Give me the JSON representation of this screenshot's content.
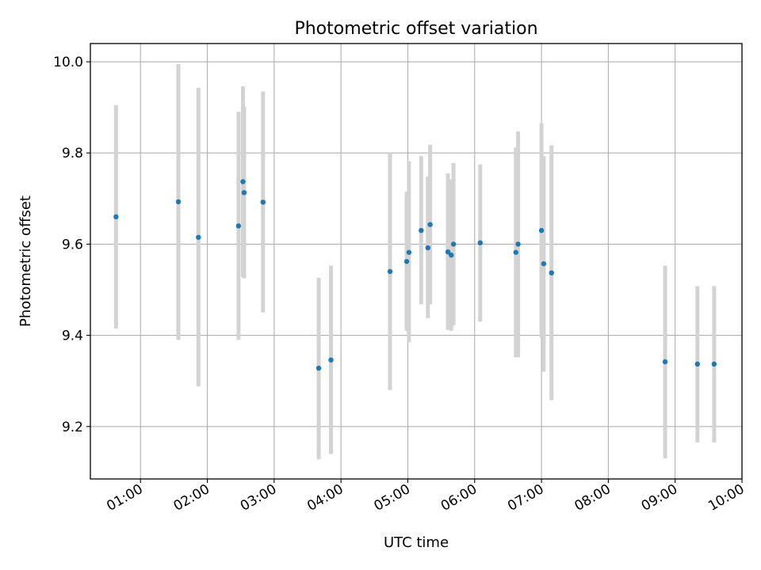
{
  "chart_data": {
    "type": "scatter",
    "title": "Photometric offset variation",
    "xlabel": "UTC time",
    "ylabel": "Photometric offset",
    "xlim": [
      "00:15",
      "10:00"
    ],
    "ylim": [
      9.085,
      10.04
    ],
    "grid": true,
    "x_tick_labels": [
      "01:00",
      "02:00",
      "03:00",
      "04:00",
      "05:00",
      "06:00",
      "07:00",
      "08:00",
      "09:00",
      "10:00"
    ],
    "y_tick_labels": [
      "9.2",
      "9.4",
      "9.6",
      "9.8",
      "10.0"
    ],
    "y_ticks": [
      9.2,
      9.4,
      9.6,
      9.8,
      10.0
    ],
    "colors": {
      "point": "#1f77b4",
      "errorbar": "#d3d3d3",
      "grid": "#b0b0b0"
    },
    "series": [
      {
        "points": [
          {
            "x": "00:38",
            "y": 9.66,
            "low": 9.415,
            "high": 9.905
          },
          {
            "x": "01:34",
            "y": 9.693,
            "low": 9.39,
            "high": 9.995
          },
          {
            "x": "01:52",
            "y": 9.615,
            "low": 9.288,
            "high": 9.943
          },
          {
            "x": "02:28",
            "y": 9.64,
            "low": 9.39,
            "high": 9.89
          },
          {
            "x": "02:32",
            "y": 9.737,
            "low": 9.528,
            "high": 9.946
          },
          {
            "x": "02:33",
            "y": 9.713,
            "low": 9.525,
            "high": 9.902
          },
          {
            "x": "02:50",
            "y": 9.692,
            "low": 9.45,
            "high": 9.935
          },
          {
            "x": "03:40",
            "y": 9.328,
            "low": 9.128,
            "high": 9.526
          },
          {
            "x": "03:51",
            "y": 9.346,
            "low": 9.14,
            "high": 9.553
          },
          {
            "x": "04:44",
            "y": 9.54,
            "low": 9.28,
            "high": 9.8
          },
          {
            "x": "04:59",
            "y": 9.562,
            "low": 9.41,
            "high": 9.715
          },
          {
            "x": "05:01",
            "y": 9.582,
            "low": 9.385,
            "high": 9.782
          },
          {
            "x": "05:12",
            "y": 9.63,
            "low": 9.468,
            "high": 9.793
          },
          {
            "x": "05:18",
            "y": 9.592,
            "low": 9.438,
            "high": 9.748
          },
          {
            "x": "05:20",
            "y": 9.643,
            "low": 9.468,
            "high": 9.818
          },
          {
            "x": "05:36",
            "y": 9.583,
            "low": 9.412,
            "high": 9.755
          },
          {
            "x": "05:39",
            "y": 9.576,
            "low": 9.41,
            "high": 9.742
          },
          {
            "x": "05:41",
            "y": 9.6,
            "low": 9.422,
            "high": 9.778
          },
          {
            "x": "06:05",
            "y": 9.603,
            "low": 9.43,
            "high": 9.775
          },
          {
            "x": "06:37",
            "y": 9.582,
            "low": 9.352,
            "high": 9.812
          },
          {
            "x": "06:39",
            "y": 9.6,
            "low": 9.352,
            "high": 9.847
          },
          {
            "x": "07:00",
            "y": 9.63,
            "low": 9.395,
            "high": 9.865
          },
          {
            "x": "07:02",
            "y": 9.557,
            "low": 9.32,
            "high": 9.793
          },
          {
            "x": "07:09",
            "y": 9.537,
            "low": 9.258,
            "high": 9.817
          },
          {
            "x": "08:51",
            "y": 9.342,
            "low": 9.13,
            "high": 9.553
          },
          {
            "x": "09:20",
            "y": 9.337,
            "low": 9.165,
            "high": 9.508
          },
          {
            "x": "09:35",
            "y": 9.337,
            "low": 9.165,
            "high": 9.508
          }
        ]
      }
    ]
  }
}
